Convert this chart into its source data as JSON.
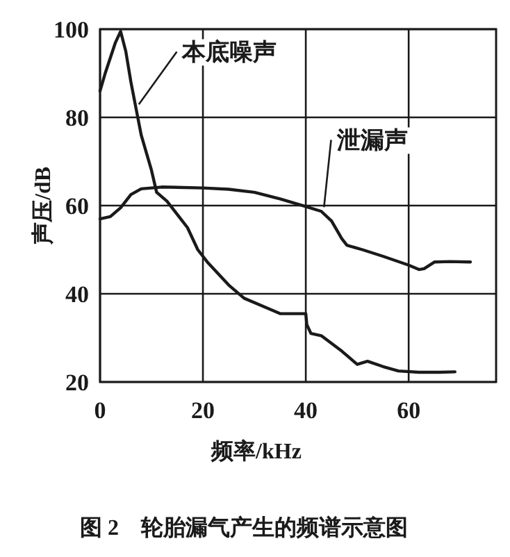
{
  "chart_data": {
    "type": "line",
    "title": "图 2　轮胎漏气产生的频谱示意图",
    "xlabel": "频率/kHz",
    "ylabel": "声压/dB",
    "xlim": [
      0,
      77
    ],
    "ylim": [
      20,
      100
    ],
    "xticks": [
      0,
      20,
      40,
      60
    ],
    "yticks": [
      20,
      40,
      60,
      80,
      100
    ],
    "grid": true,
    "legend": false,
    "marker": "none",
    "line_style": "solid",
    "series": [
      {
        "name": "本底噪声",
        "color": "#1a1a1a",
        "x": [
          0,
          1,
          3,
          4,
          5,
          6,
          7,
          8,
          10,
          11,
          13,
          15,
          17,
          19,
          21,
          25,
          28,
          32,
          35,
          40,
          40.2,
          41,
          43,
          47,
          50,
          52,
          55,
          58,
          62,
          66,
          69
        ],
        "values": [
          86,
          90,
          97,
          99.5,
          95,
          88,
          82,
          76,
          68,
          63,
          61,
          58,
          55,
          50,
          47,
          42,
          39,
          37,
          35.5,
          35.5,
          33,
          31,
          30.5,
          27,
          24,
          24.7,
          23.5,
          22.5,
          22.2,
          22.2,
          22.3
        ]
      },
      {
        "name": "泄漏声",
        "color": "#1a1a1a",
        "x": [
          0,
          2,
          4,
          6,
          8,
          12,
          20,
          25,
          30,
          35,
          40,
          43,
          45,
          47,
          48,
          51,
          55,
          60,
          62,
          63,
          65,
          68,
          72
        ],
        "values": [
          57,
          57.5,
          59.5,
          62.5,
          63.8,
          64.2,
          64,
          63.7,
          63,
          61.5,
          59.8,
          58.7,
          56.5,
          52.5,
          51,
          50,
          48.5,
          46.5,
          45.5,
          45.7,
          47.2,
          47.3,
          47.2
        ]
      }
    ]
  }
}
